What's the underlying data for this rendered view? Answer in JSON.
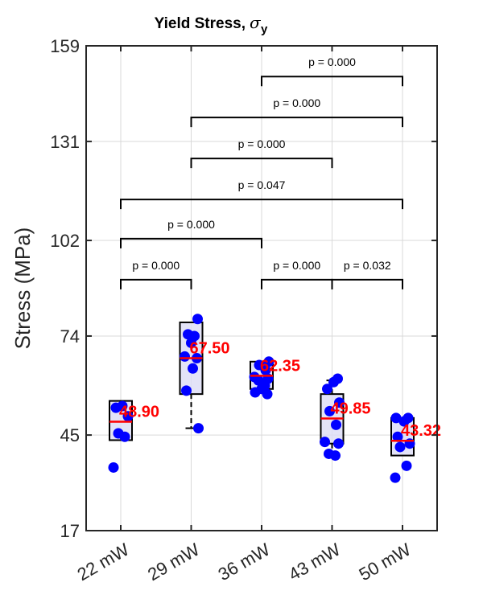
{
  "chart_data": {
    "type": "box",
    "title": "Yield Stress,",
    "title_symbol": "σ",
    "title_subscript": "y",
    "ylabel": "Stress (MPa)",
    "xlabel": "",
    "ylim": [
      17,
      159
    ],
    "yticks": [
      17,
      45,
      74,
      102,
      131,
      159
    ],
    "grid": true,
    "categories": [
      "22 mW",
      "29 mW",
      "36 mW",
      "43 mW",
      "50 mW"
    ],
    "boxes": [
      {
        "category": "22 mW",
        "q1": 43.5,
        "median": 48.9,
        "q3": 55.0,
        "whisker_low": 43.5,
        "whisker_high": 55.0
      },
      {
        "category": "29 mW",
        "q1": 57.0,
        "median": 67.5,
        "q3": 78.0,
        "whisker_low": 47.0,
        "whisker_high": 78.0
      },
      {
        "category": "36 mW",
        "q1": 58.5,
        "median": 62.35,
        "q3": 66.5,
        "whisker_low": 58.5,
        "whisker_high": 66.5
      },
      {
        "category": "43 mW",
        "q1": 42.5,
        "median": 49.85,
        "q3": 57.0,
        "whisker_low": 40.0,
        "whisker_high": 61.0
      },
      {
        "category": "50 mW",
        "q1": 39.0,
        "median": 43.32,
        "q3": 50.0,
        "whisker_low": 39.0,
        "whisker_high": 50.0
      }
    ],
    "points": [
      {
        "category": "22 mW",
        "values": [
          35.5,
          44.5,
          45.5,
          50.5,
          53.0,
          53.5
        ]
      },
      {
        "category": "29 mW",
        "values": [
          47.0,
          58.0,
          64.5,
          67.5,
          68.0,
          72.0,
          74.0,
          74.5,
          79.0
        ]
      },
      {
        "category": "36 mW",
        "values": [
          57.0,
          57.5,
          58.5,
          59.5,
          61.0,
          61.5,
          62.0,
          64.0,
          65.5,
          66.5
        ]
      },
      {
        "category": "43 mW",
        "values": [
          39.0,
          39.5,
          42.5,
          43.0,
          48.0,
          52.0,
          54.5,
          58.5,
          60.5,
          61.5
        ]
      },
      {
        "category": "50 mW",
        "values": [
          32.5,
          36.0,
          41.5,
          42.5,
          44.5,
          49.0,
          50.0,
          50.0
        ]
      }
    ],
    "median_labels": [
      "48.90",
      "67.50",
      "62.35",
      "49.85",
      "43.32"
    ],
    "significance": [
      {
        "from": "22 mW",
        "to": "29 mW",
        "label": "p = 0.000",
        "y": 90.5
      },
      {
        "from": "36 mW",
        "to": "43 mW",
        "label": "p = 0.000",
        "y": 90.5
      },
      {
        "from": "43 mW",
        "to": "50 mW",
        "label": "p = 0.032",
        "y": 90.5
      },
      {
        "from": "22 mW",
        "to": "36 mW",
        "label": "p = 0.000",
        "y": 102.5
      },
      {
        "from": "22 mW",
        "to": "50 mW",
        "label": "p = 0.047",
        "y": 114.0
      },
      {
        "from": "29 mW",
        "to": "43 mW",
        "label": "p = 0.000",
        "y": 126.0
      },
      {
        "from": "29 mW",
        "to": "50 mW",
        "label": "p = 0.000",
        "y": 138.0
      },
      {
        "from": "36 mW",
        "to": "50 mW",
        "label": "p = 0.000",
        "y": 150.0
      }
    ],
    "colors": {
      "points": "#0000ff",
      "median": "#ff0000",
      "box_fill": "#dcdcf5",
      "box_edge": "#000000",
      "grid": "#d9d9d9"
    }
  }
}
